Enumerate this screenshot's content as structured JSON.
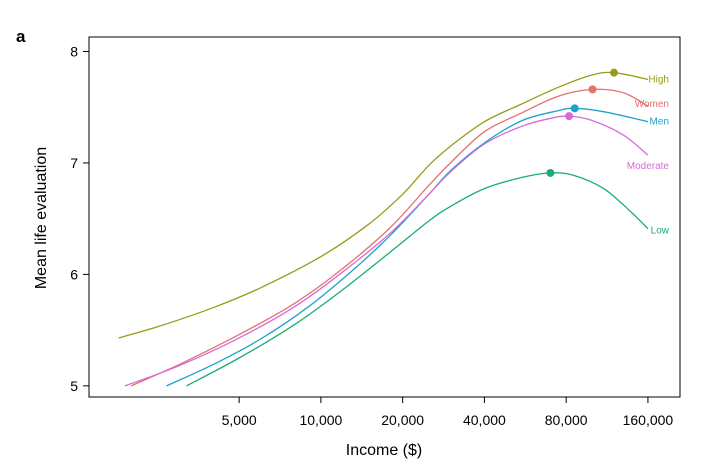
{
  "panel_label": "a",
  "chart_data": {
    "type": "line",
    "title": "",
    "xlabel": "Income ($)",
    "ylabel": "Mean life evaluation",
    "x_scale": "log2",
    "xlim": [
      1400,
      210000
    ],
    "ylim": [
      4.9,
      8.13
    ],
    "x_ticks": [
      5000,
      10000,
      20000,
      40000,
      80000,
      160000
    ],
    "x_tick_labels": [
      "5,000",
      "10,000",
      "20,000",
      "40,000",
      "80,000",
      "160,000"
    ],
    "y_ticks": [
      5,
      6,
      7,
      8
    ],
    "y_tick_labels": [
      "5",
      "6",
      "7",
      "8"
    ],
    "grid": false,
    "legend": "direct labels at line ends",
    "series": [
      {
        "name": "High",
        "color": "#9a9a1a",
        "x": [
          1800,
          2500,
          4000,
          6000,
          10000,
          15000,
          20000,
          25000,
          30000,
          40000,
          55000,
          75000,
          100000,
          120000,
          160000
        ],
        "y": [
          5.43,
          5.53,
          5.7,
          5.88,
          6.16,
          6.45,
          6.72,
          6.98,
          7.15,
          7.37,
          7.53,
          7.68,
          7.79,
          7.81,
          7.75
        ],
        "peak": {
          "x": 120000,
          "y": 7.81
        }
      },
      {
        "name": "Women",
        "color": "#e5706e",
        "x": [
          2000,
          3000,
          5000,
          8000,
          12000,
          18000,
          25000,
          30000,
          40000,
          55000,
          75000,
          100000,
          130000,
          160000
        ],
        "y": [
          5.0,
          5.19,
          5.46,
          5.74,
          6.05,
          6.42,
          6.8,
          7.0,
          7.28,
          7.45,
          7.6,
          7.66,
          7.63,
          7.51
        ],
        "peak": {
          "x": 100000,
          "y": 7.66
        }
      },
      {
        "name": "Men",
        "color": "#1ba3cc",
        "x": [
          2700,
          4000,
          6000,
          9000,
          13000,
          18000,
          25000,
          30000,
          40000,
          55000,
          75000,
          86000,
          110000,
          160000
        ],
        "y": [
          5.0,
          5.19,
          5.42,
          5.71,
          6.03,
          6.35,
          6.72,
          6.93,
          7.18,
          7.38,
          7.47,
          7.49,
          7.46,
          7.37
        ],
        "peak": {
          "x": 86000,
          "y": 7.49
        }
      },
      {
        "name": "Moderate",
        "color": "#d66bd8",
        "x": [
          1900,
          3000,
          5000,
          8000,
          12000,
          18000,
          25000,
          30000,
          40000,
          55000,
          70000,
          82000,
          100000,
          130000,
          160000
        ],
        "y": [
          5.0,
          5.18,
          5.43,
          5.71,
          6.02,
          6.37,
          6.72,
          6.92,
          7.17,
          7.33,
          7.4,
          7.42,
          7.38,
          7.25,
          7.07
        ],
        "peak": {
          "x": 82000,
          "y": 7.42
        }
      },
      {
        "name": "Low",
        "color": "#1aac78",
        "x": [
          3200,
          5000,
          8000,
          12000,
          18000,
          25000,
          30000,
          40000,
          55000,
          70000,
          85000,
          110000,
          140000,
          160000
        ],
        "y": [
          5.0,
          5.25,
          5.55,
          5.86,
          6.2,
          6.48,
          6.61,
          6.77,
          6.87,
          6.91,
          6.89,
          6.77,
          6.55,
          6.41
        ],
        "peak": {
          "x": 70000,
          "y": 6.91
        }
      }
    ]
  }
}
